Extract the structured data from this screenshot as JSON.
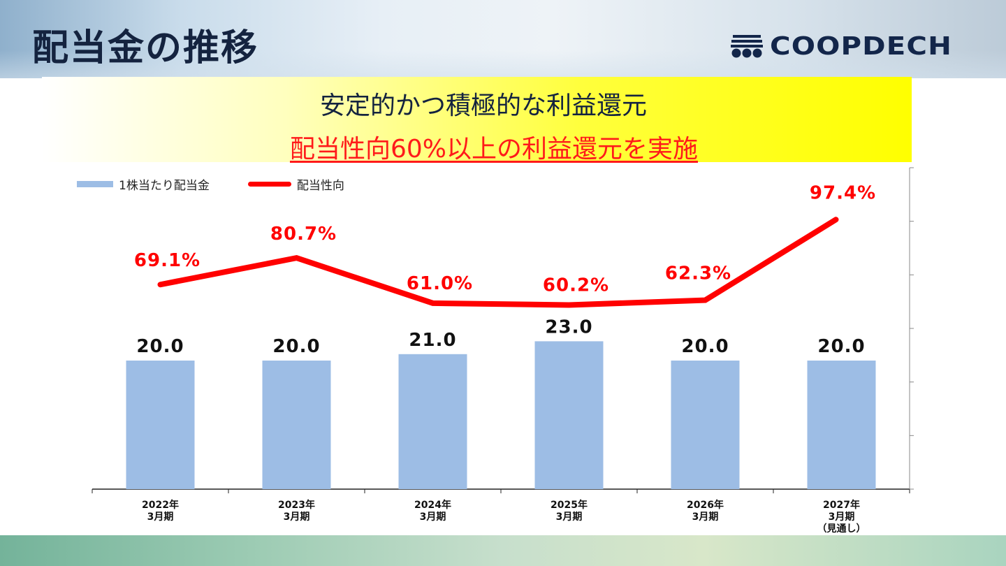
{
  "header": {
    "title": "配当金の推移",
    "logo_text": "COOPDECH"
  },
  "headline": "安定的かつ積極的な利益還元",
  "subheadline": "配当性向60%以上の利益還元を実施",
  "legend": {
    "bar_label": "1株当たり配当金",
    "line_label": "配当性向"
  },
  "colors": {
    "bar": "#9dbde5",
    "line": "#ff0000",
    "title": "#14233f"
  },
  "chart_data": {
    "type": "bar",
    "categories": [
      [
        "2022年",
        "3月期"
      ],
      [
        "2023年",
        "3月期"
      ],
      [
        "2024年",
        "3月期"
      ],
      [
        "2025年",
        "3月期"
      ],
      [
        "2026年",
        "3月期"
      ],
      [
        "2027年",
        "3月期",
        "（見通し）"
      ]
    ],
    "series": [
      {
        "name": "1株当たり配当金",
        "type": "bar",
        "axis": "left",
        "values": [
          20.0,
          20.0,
          21.0,
          23.0,
          20.0,
          20.0
        ],
        "labels": [
          "20.0",
          "20.0",
          "21.0",
          "23.0",
          "20.0",
          "20.0"
        ]
      },
      {
        "name": "配当性向",
        "type": "line",
        "axis": "right",
        "values": [
          69.1,
          80.7,
          61.0,
          60.2,
          62.3,
          97.4
        ],
        "labels": [
          "69.1%",
          "80.7%",
          "61.0%",
          "60.2%",
          "62.3%",
          "97.4%"
        ]
      }
    ],
    "left_axis_range": [
      0,
      50
    ],
    "right_axis_range": [
      -20,
      120
    ],
    "right_axis_ticks": 6,
    "grid": false,
    "legend_position": "top-left"
  }
}
